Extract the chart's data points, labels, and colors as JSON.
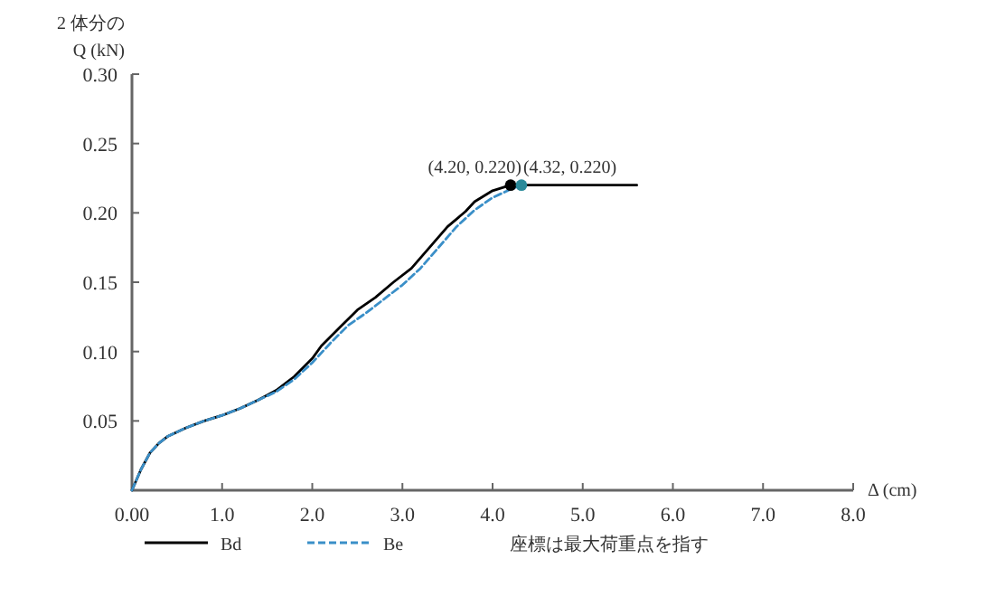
{
  "chart_data": {
    "type": "line",
    "xlabel": "Δ (cm)",
    "ylabel": "2 体分の\nQ (kN)",
    "xlim": [
      0,
      8
    ],
    "ylim": [
      0,
      0.3
    ],
    "xticks": [
      {
        "value": 0,
        "label": "0.00"
      },
      {
        "value": 1,
        "label": "1.0"
      },
      {
        "value": 2,
        "label": "2.0"
      },
      {
        "value": 3,
        "label": "3.0"
      },
      {
        "value": 4,
        "label": "4.0"
      },
      {
        "value": 5,
        "label": "5.0"
      },
      {
        "value": 6,
        "label": "6.0"
      },
      {
        "value": 7,
        "label": "7.0"
      },
      {
        "value": 8,
        "label": "8.0"
      }
    ],
    "yticks": [
      {
        "value": 0.05,
        "label": "0.05"
      },
      {
        "value": 0.1,
        "label": "0.10"
      },
      {
        "value": 0.15,
        "label": "0.15"
      },
      {
        "value": 0.2,
        "label": "0.20"
      },
      {
        "value": 0.25,
        "label": "0.25"
      },
      {
        "value": 0.3,
        "label": "0.30"
      }
    ],
    "legend": "bottom",
    "series": [
      {
        "name": "Bd",
        "color": "#000000",
        "line_style": "solid",
        "x": [
          0,
          0.1,
          0.2,
          0.3,
          0.4,
          0.6,
          0.8,
          1.0,
          1.2,
          1.4,
          1.6,
          1.8,
          2.0,
          2.1,
          2.3,
          2.5,
          2.7,
          2.9,
          3.1,
          3.3,
          3.5,
          3.7,
          3.8,
          4.0,
          4.2,
          5.6
        ],
        "values": [
          0,
          0.015,
          0.027,
          0.034,
          0.039,
          0.045,
          0.05,
          0.054,
          0.059,
          0.065,
          0.072,
          0.082,
          0.095,
          0.104,
          0.117,
          0.13,
          0.139,
          0.15,
          0.16,
          0.175,
          0.19,
          0.201,
          0.208,
          0.216,
          0.22,
          0.22
        ]
      },
      {
        "name": "Be",
        "color": "#3a8fc8",
        "line_style": "dashed",
        "x": [
          0,
          0.1,
          0.2,
          0.3,
          0.4,
          0.6,
          0.8,
          1.0,
          1.2,
          1.4,
          1.6,
          1.8,
          2.0,
          2.2,
          2.4,
          2.6,
          2.8,
          3.0,
          3.2,
          3.4,
          3.6,
          3.8,
          4.0,
          4.2,
          4.32
        ],
        "values": [
          0,
          0.015,
          0.027,
          0.034,
          0.039,
          0.045,
          0.05,
          0.054,
          0.059,
          0.065,
          0.071,
          0.08,
          0.092,
          0.106,
          0.119,
          0.128,
          0.138,
          0.148,
          0.16,
          0.175,
          0.19,
          0.202,
          0.211,
          0.217,
          0.22
        ]
      },
      {
        "type": "scatter",
        "color": "#000000",
        "x": [
          4.2
        ],
        "values": [
          0.22
        ]
      },
      {
        "type": "scatter",
        "color": "#2a8a9a",
        "x": [
          4.32
        ],
        "values": [
          0.22
        ]
      }
    ],
    "annotations": [
      {
        "text": "(4.20, 0.220)",
        "x": 4.2,
        "y": 0.22
      },
      {
        "text": "(4.32, 0.220)",
        "x": 4.32,
        "y": 0.22
      },
      "座標は最大荷重点を指す"
    ]
  }
}
